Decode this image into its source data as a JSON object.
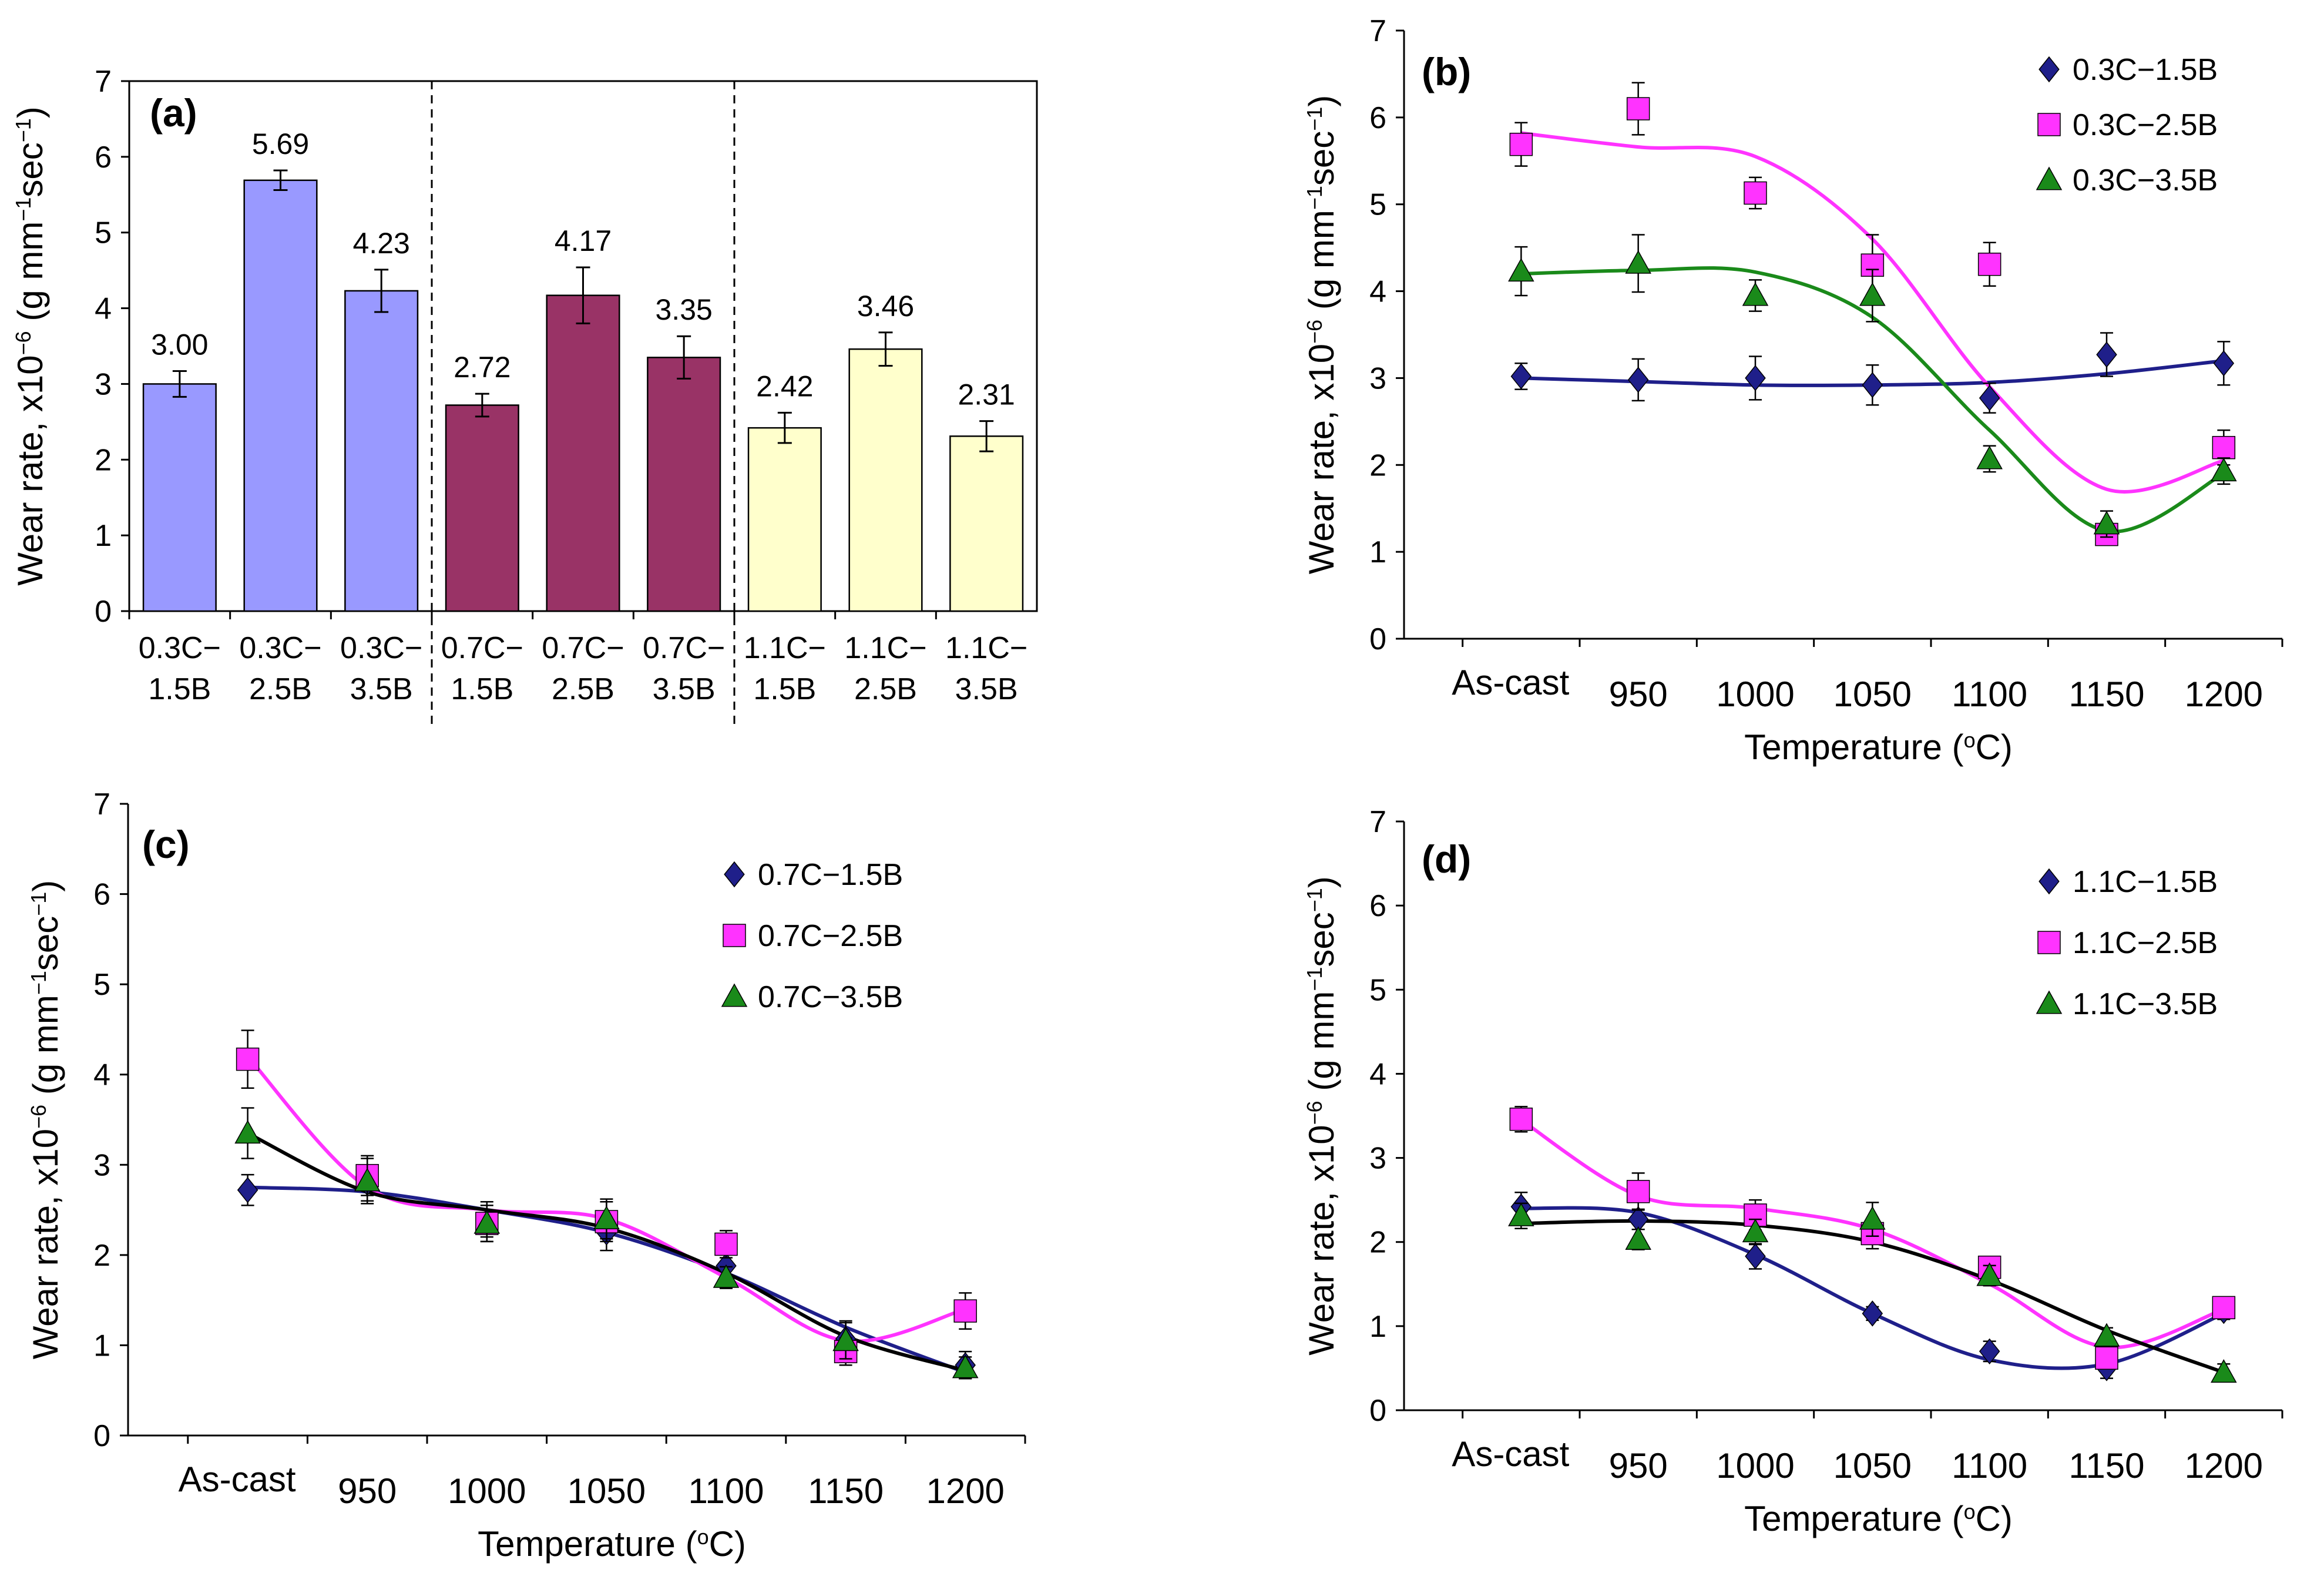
{
  "colors": {
    "blue_bar": "#9999ff",
    "maroon_bar": "#993366",
    "yellow_bar": "#ffffcc",
    "navy": "#1f1f8a",
    "magenta": "#ff33ff",
    "green": "#1a8a1a",
    "black": "#000000"
  },
  "chart_data": [
    {
      "type": "bar",
      "panel_label": "(a)",
      "ylabel_parts": [
        "Wear rate, x10",
        "−6",
        " (g mm",
        "−1",
        "sec",
        "−1",
        ")"
      ],
      "ylim": [
        0,
        7
      ],
      "yticks": [
        "0",
        "1",
        "2",
        "3",
        "4",
        "5",
        "6",
        "7"
      ],
      "categories": [
        [
          "0.3C−",
          "1.5B"
        ],
        [
          "0.3C−",
          "2.5B"
        ],
        [
          "0.3C−",
          "3.5B"
        ],
        [
          "0.7C−",
          "1.5B"
        ],
        [
          "0.7C−",
          "2.5B"
        ],
        [
          "0.7C−",
          "3.5B"
        ],
        [
          "1.1C−",
          "1.5B"
        ],
        [
          "1.1C−",
          "2.5B"
        ],
        [
          "1.1C−",
          "3.5B"
        ]
      ],
      "values": [
        3.0,
        5.69,
        4.23,
        2.72,
        4.17,
        3.35,
        2.42,
        3.46,
        2.31
      ],
      "value_labels": [
        "3.00",
        "5.69",
        "4.23",
        "2.72",
        "4.17",
        "3.35",
        "2.42",
        "3.46",
        "2.31"
      ],
      "errors": [
        0.17,
        0.13,
        0.28,
        0.15,
        0.37,
        0.28,
        0.2,
        0.22,
        0.2
      ],
      "groups": [
        "blue",
        "blue",
        "blue",
        "maroon",
        "maroon",
        "maroon",
        "yellow",
        "yellow",
        "yellow"
      ]
    },
    {
      "type": "scatter",
      "panel_label": "(b)",
      "ylabel_parts": [
        "Wear rate, x10",
        "−6",
        " (g mm",
        "−1",
        "sec",
        "−1",
        ")"
      ],
      "xlabel_parts": [
        "Temperature (",
        "o",
        "C)"
      ],
      "ylim": [
        0,
        7
      ],
      "yticks": [
        "0",
        "1",
        "2",
        "3",
        "4",
        "5",
        "6",
        "7"
      ],
      "x_categories": [
        "As-cast",
        "950",
        "1000",
        "1050",
        "1100",
        "1150",
        "1200"
      ],
      "series": [
        {
          "name": "0.3C−1.5B",
          "marker": "diamond",
          "color": "navy",
          "values": [
            3.02,
            2.98,
            3.0,
            2.92,
            2.77,
            3.27,
            3.17
          ],
          "errors": [
            0.15,
            0.24,
            0.25,
            0.23,
            0.17,
            0.25,
            0.25
          ],
          "fit": [
            3.0,
            2.96,
            2.92,
            2.92,
            2.95,
            3.05,
            3.2
          ]
        },
        {
          "name": "0.3C−2.5B",
          "marker": "square",
          "color": "magenta",
          "values": [
            5.69,
            6.1,
            5.13,
            4.3,
            4.31,
            1.2,
            2.2
          ],
          "errors": [
            0.25,
            0.3,
            0.18,
            0.35,
            0.25,
            0.12,
            0.2
          ],
          "fit": [
            5.82,
            5.66,
            5.55,
            4.6,
            2.9,
            1.72,
            2.05
          ]
        },
        {
          "name": "0.3C−3.5B",
          "marker": "triangle",
          "color": "green",
          "values": [
            4.23,
            4.32,
            3.95,
            3.95,
            2.07,
            1.32,
            1.93
          ],
          "errors": [
            0.28,
            0.33,
            0.18,
            0.3,
            0.15,
            0.15,
            0.15
          ],
          "fit": [
            4.2,
            4.24,
            4.22,
            3.7,
            2.4,
            1.24,
            1.9
          ]
        }
      ]
    },
    {
      "type": "scatter",
      "panel_label": "(c)",
      "ylabel_parts": [
        "Wear rate, x10",
        "−6",
        " (g mm",
        "−1",
        "sec",
        "−1",
        ")"
      ],
      "xlabel_parts": [
        "Temperature (",
        "o",
        "C)"
      ],
      "ylim": [
        0,
        7
      ],
      "yticks": [
        "0",
        "1",
        "2",
        "3",
        "4",
        "5",
        "6",
        "7"
      ],
      "x_categories": [
        "As-cast",
        "950",
        "1000",
        "1050",
        "1100",
        "1150",
        "1200"
      ],
      "series": [
        {
          "name": "0.7C−1.5B",
          "marker": "diamond",
          "color": "navy",
          "values": [
            2.72,
            2.8,
            2.37,
            2.25,
            1.88,
            1.07,
            0.78
          ],
          "errors": [
            0.17,
            0.2,
            0.22,
            0.2,
            0.15,
            0.2,
            0.15
          ],
          "fit": [
            2.75,
            2.7,
            2.5,
            2.25,
            1.8,
            1.2,
            0.7
          ]
        },
        {
          "name": "0.7C−2.5B",
          "marker": "square",
          "color": "magenta",
          "values": [
            4.17,
            2.88,
            2.35,
            2.37,
            2.12,
            0.93,
            1.38
          ],
          "errors": [
            0.32,
            0.22,
            0.15,
            0.22,
            0.15,
            0.15,
            0.2
          ],
          "fit": [
            4.2,
            2.75,
            2.5,
            2.4,
            1.75,
            1.05,
            1.4
          ]
        },
        {
          "name": "0.7C−3.5B",
          "marker": "triangle",
          "color": "green",
          "values": [
            3.35,
            2.82,
            2.35,
            2.4,
            1.75,
            1.05,
            0.75
          ],
          "errors": [
            0.28,
            0.25,
            0.2,
            0.22,
            0.12,
            0.2,
            0.12
          ],
          "fit": [
            3.35,
            2.7,
            2.5,
            2.3,
            1.8,
            1.1,
            0.72
          ]
        }
      ]
    },
    {
      "type": "scatter",
      "panel_label": "(d)",
      "ylabel_parts": [
        "Wear rate, x10",
        "−6",
        " (g mm",
        "−1",
        "sec",
        "−1",
        ")"
      ],
      "xlabel_parts": [
        "Temperature (",
        "o",
        "C)"
      ],
      "ylim": [
        0,
        7
      ],
      "yticks": [
        "0",
        "1",
        "2",
        "3",
        "4",
        "5",
        "6",
        "7"
      ],
      "x_categories": [
        "As-cast",
        "950",
        "1000",
        "1050",
        "1100",
        "1150",
        "1200"
      ],
      "series": [
        {
          "name": "1.1C−1.5B",
          "marker": "diamond",
          "color": "navy",
          "values": [
            2.42,
            2.27,
            1.83,
            1.15,
            0.7,
            0.5,
            1.18
          ],
          "errors": [
            0.17,
            0.12,
            0.15,
            0.08,
            0.12,
            0.12,
            0.1
          ],
          "fit": [
            2.4,
            2.35,
            1.85,
            1.15,
            0.6,
            0.55,
            1.15
          ]
        },
        {
          "name": "1.1C−2.5B",
          "marker": "square",
          "color": "magenta",
          "values": [
            3.46,
            2.6,
            2.32,
            2.1,
            1.7,
            0.62,
            1.22
          ],
          "errors": [
            0.15,
            0.22,
            0.18,
            0.18,
            0.12,
            0.12,
            0.1
          ],
          "fit": [
            3.45,
            2.55,
            2.4,
            2.15,
            1.5,
            0.75,
            1.2
          ]
        },
        {
          "name": "1.1C−3.5B",
          "marker": "triangle",
          "color": "green",
          "values": [
            2.31,
            2.03,
            2.12,
            2.27,
            1.6,
            0.88,
            0.45
          ],
          "errors": [
            0.15,
            0.12,
            0.15,
            0.2,
            0.12,
            0.1,
            0.1
          ],
          "fit": [
            2.22,
            2.25,
            2.2,
            2.0,
            1.55,
            0.95,
            0.45
          ]
        }
      ]
    }
  ]
}
